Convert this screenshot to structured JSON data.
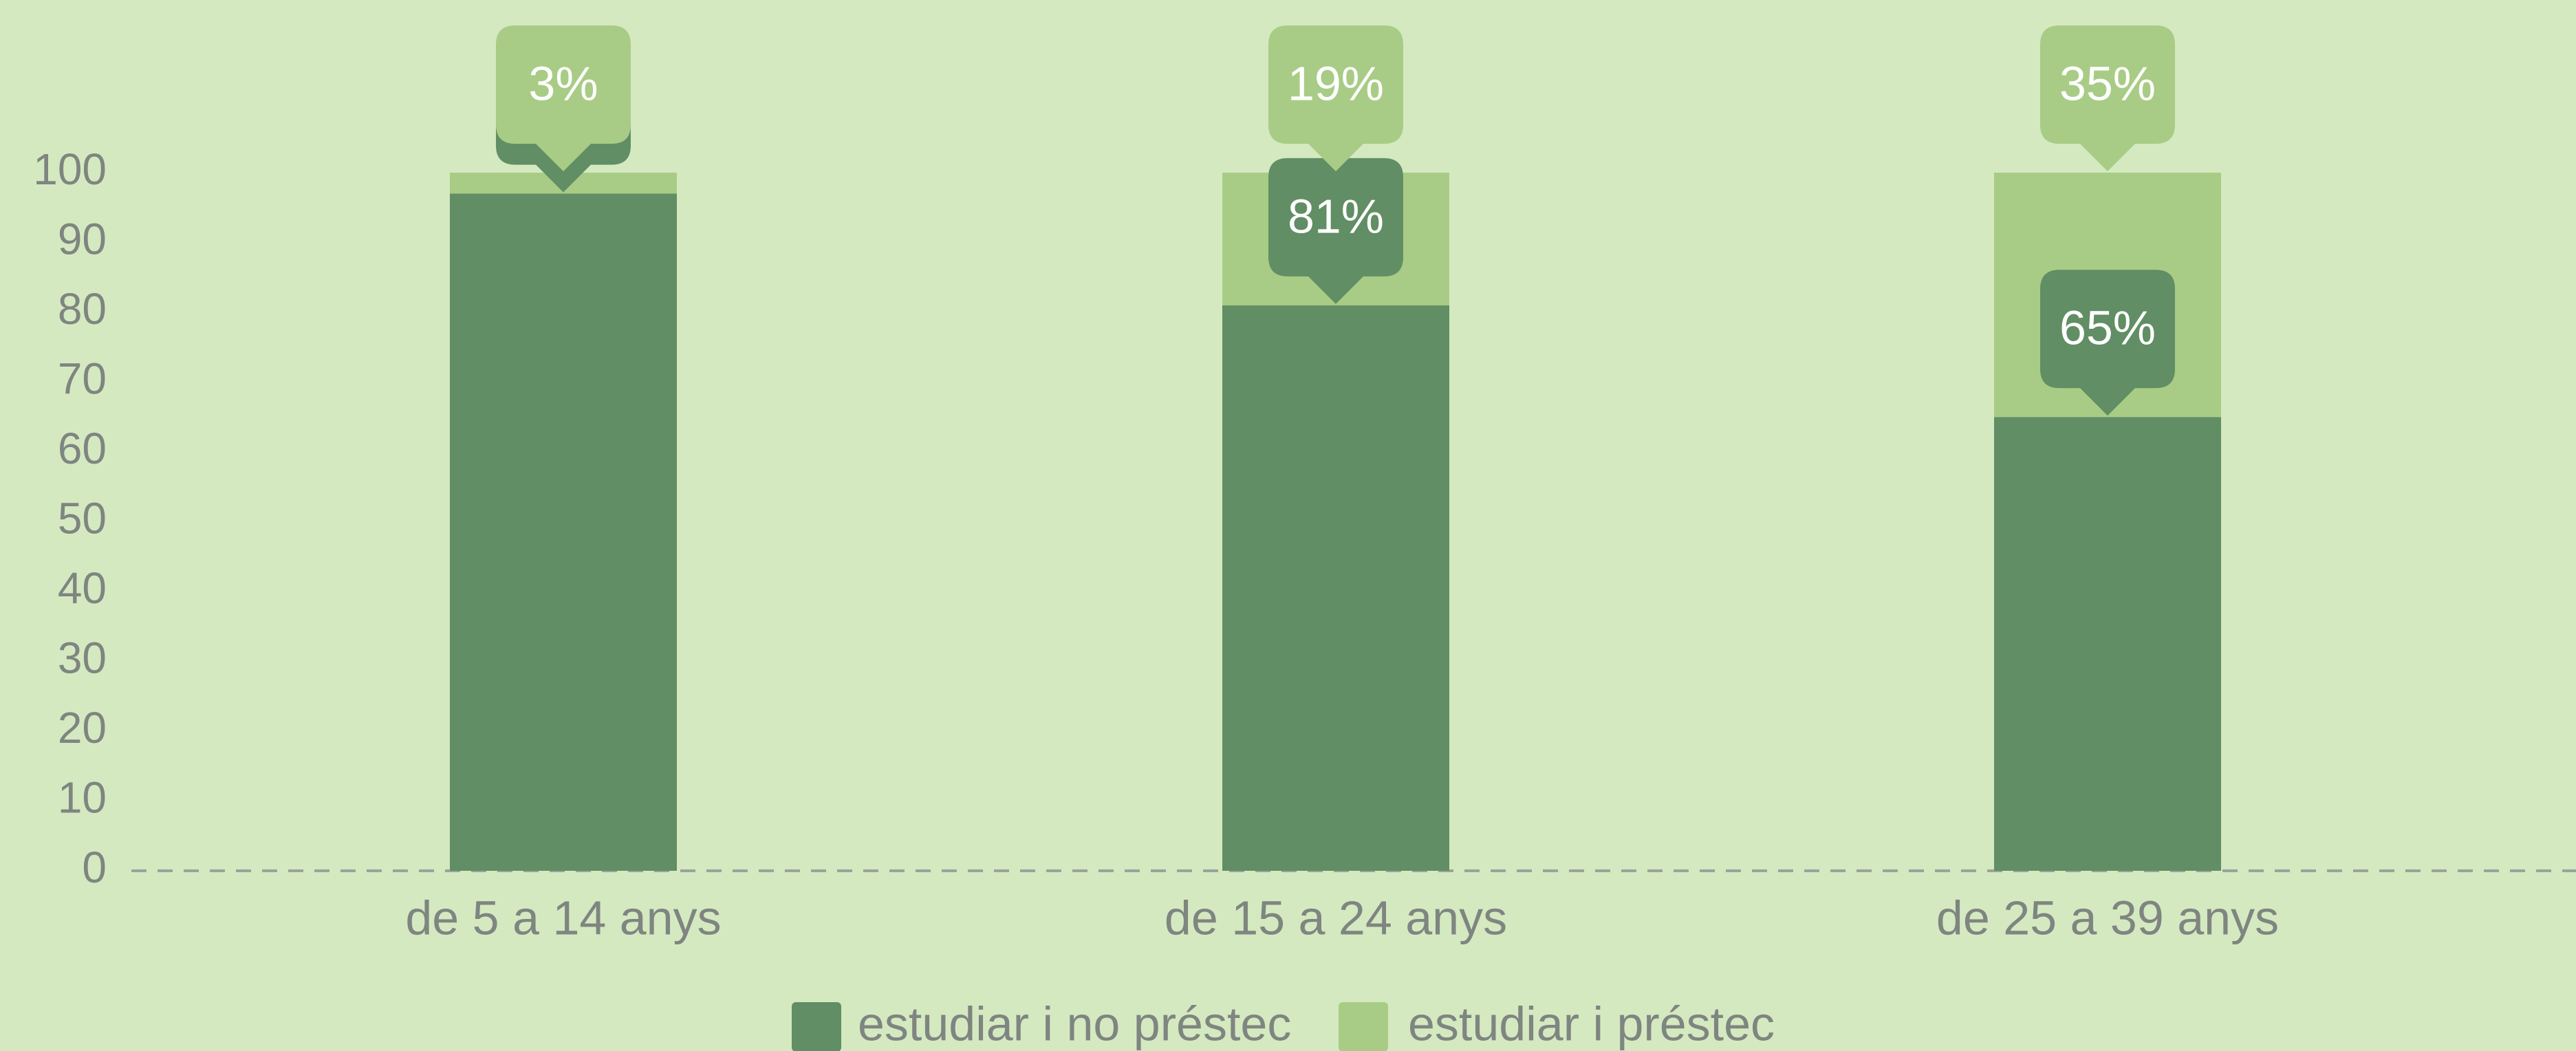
{
  "chart_data": {
    "type": "stacked_bar",
    "categories": [
      "de 5 a 14 anys",
      "de 15 a 24 anys",
      "de 25 a 39 anys"
    ],
    "series": [
      {
        "name": "estudiar i no préstec",
        "color": "#618e64",
        "values": [
          97,
          81,
          65
        ],
        "value_labels": [
          null,
          "81%",
          "65%"
        ]
      },
      {
        "name": "estudiar i préstec",
        "color": "#a8cc85",
        "values": [
          3,
          19,
          35
        ],
        "value_labels": [
          "3%",
          "19%",
          "35%"
        ]
      }
    ],
    "ylim": [
      0,
      100
    ],
    "yticks": [
      0,
      10,
      20,
      30,
      40,
      50,
      60,
      70,
      80,
      90,
      100
    ],
    "grid": false
  }
}
